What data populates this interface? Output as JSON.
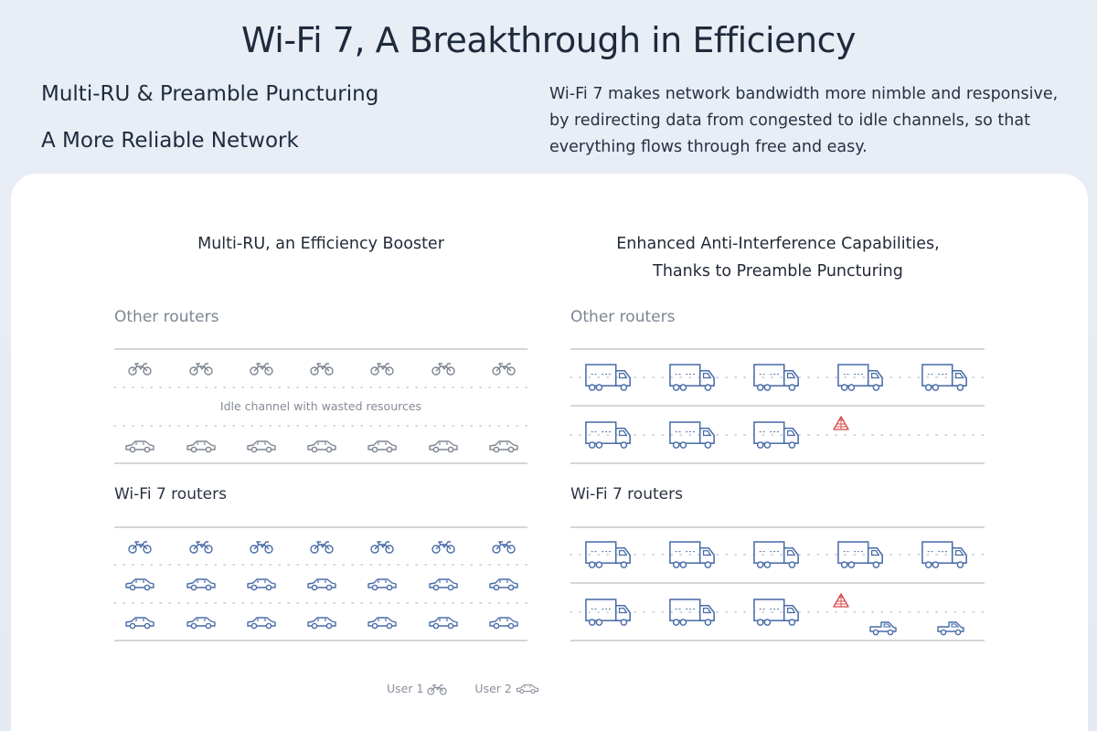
{
  "header": {
    "title": "Wi-Fi 7, A Breakthrough in Efficiency",
    "headings": [
      "Multi-RU & Preamble Puncturing",
      "A More Reliable Network"
    ],
    "description": "Wi-Fi 7 makes network bandwidth more nimble and responsive, by redirecting data from congested to idle channels, so that everything flows through free and easy."
  },
  "left_panel": {
    "title": "Multi-RU, an Efficiency Booster",
    "other_label": "Other routers",
    "wifi7_label": "Wi-Fi 7 routers",
    "idle_text": "Idle channel with wasted resources"
  },
  "right_panel": {
    "title_line1": "Enhanced Anti-Interference Capabilities,",
    "title_line2": "Thanks to Preamble Puncturing",
    "other_label": "Other routers",
    "wifi7_label": "Wi-Fi 7 routers"
  },
  "legend": {
    "user1": "User 1",
    "user2": "User 2"
  },
  "colors": {
    "accent_blue": "#4a6ca8",
    "muted_gray": "#7e8591",
    "warning_red": "#d64545"
  },
  "icons": {
    "vehicle_1": "motorbike-icon",
    "vehicle_2": "car-icon",
    "vehicle_3": "truck-icon",
    "vehicle_4": "pickup-truck-icon",
    "obstacle": "warning-cone-icon"
  }
}
